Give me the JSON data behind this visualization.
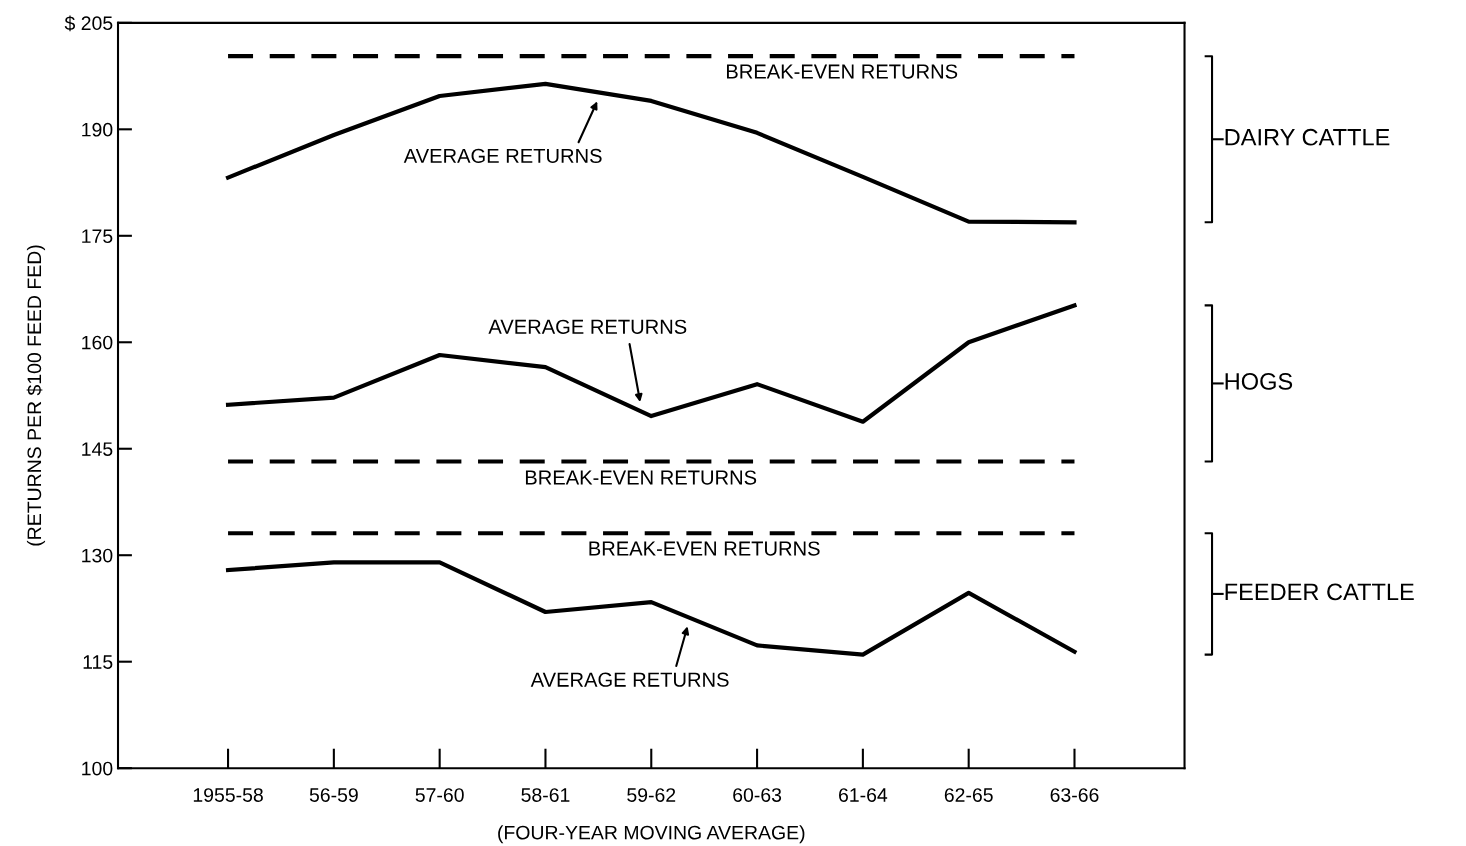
{
  "chart_data": {
    "type": "line",
    "ylabel": "(RETURNS PER $100 FEED FED)",
    "xlabel": "(FOUR-YEAR MOVING AVERAGE)",
    "categories": [
      "1955-58",
      "56-59",
      "57-60",
      "58-61",
      "59-62",
      "60-63",
      "61-64",
      "62-65",
      "63-66"
    ],
    "series": [
      {
        "name": "BREAK-EVEN RETURNS",
        "color": "#000000",
        "line_style": "dashed",
        "values": [
          200.3,
          200.3,
          200.3,
          200.3,
          200.3,
          200.3,
          200.3,
          200.3,
          200.3
        ]
      },
      {
        "name": "AVERAGE RETURNS",
        "color": "#000000",
        "line_style": "solid",
        "values": [
          183.2,
          189.2,
          194.7,
          196.4,
          194.0,
          189.5,
          183.3,
          177.0,
          176.9
        ]
      },
      {
        "name": "AVERAGE RETURNS",
        "color": "#000000",
        "line_style": "solid",
        "values": [
          151.2,
          152.2,
          158.2,
          156.5,
          149.6,
          154.1,
          148.8,
          160.0,
          165.2
        ]
      },
      {
        "name": "BREAK-EVEN RETURNS",
        "color": "#000000",
        "line_style": "dashed",
        "values": [
          143.2,
          143.2,
          143.2,
          143.2,
          143.2,
          143.2,
          143.2,
          143.2,
          143.2
        ]
      },
      {
        "name": "BREAK-EVEN RETURNS",
        "color": "#000000",
        "line_style": "dashed",
        "values": [
          133.1,
          133.1,
          133.1,
          133.1,
          133.1,
          133.1,
          133.1,
          133.1,
          133.1
        ]
      },
      {
        "name": "AVERAGE RETURNS",
        "color": "#000000",
        "line_style": "solid",
        "values": [
          127.9,
          129.0,
          129.0,
          122.0,
          123.4,
          117.3,
          116.0,
          124.7,
          116.4
        ]
      }
    ],
    "ylim": [
      100,
      205
    ],
    "yticks": [
      100,
      115,
      130,
      145,
      160,
      175,
      190,
      {
        "value": 205,
        "label": "$ 205"
      }
    ],
    "annotations": [
      "DAIRY CATTLE",
      "HOGS",
      "FEEDER CATTLE"
    ],
    "grid": false
  }
}
